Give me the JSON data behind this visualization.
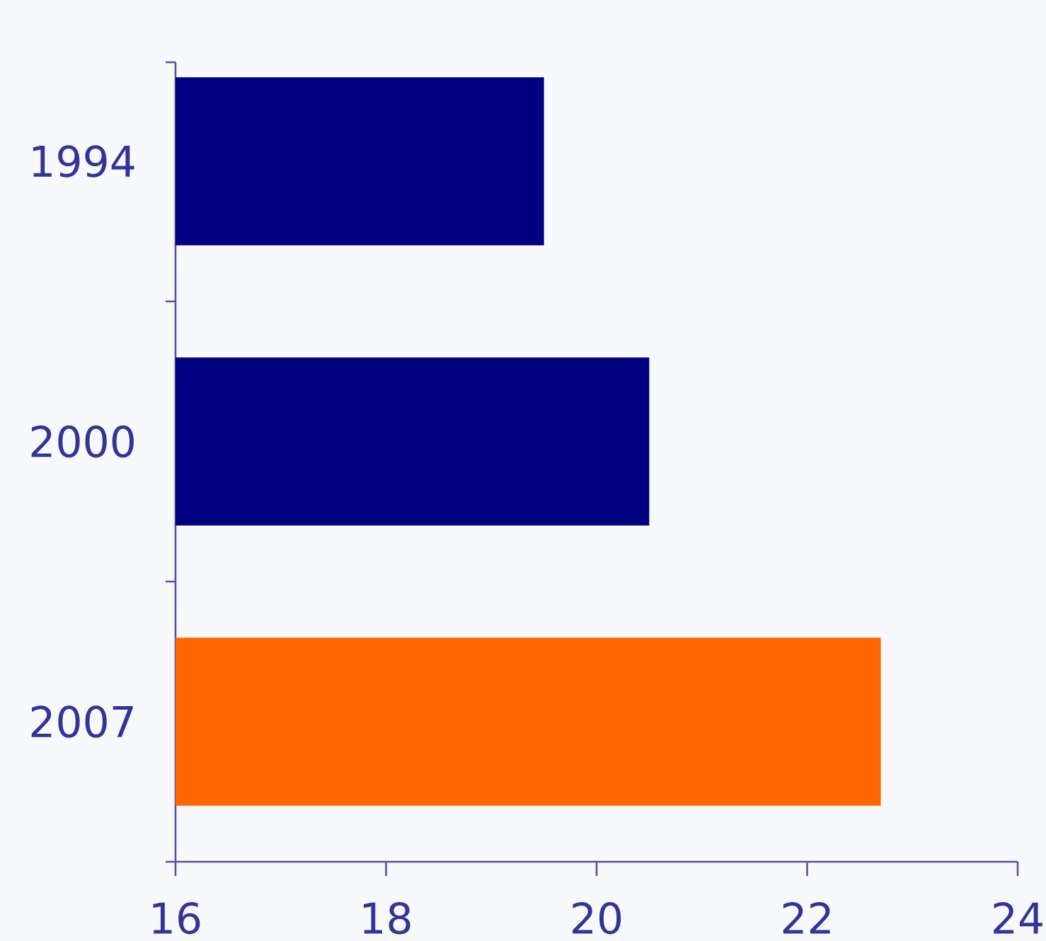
{
  "chart_data": {
    "type": "bar",
    "orientation": "horizontal",
    "categories": [
      "1994",
      "2000",
      "2007"
    ],
    "values": [
      19.5,
      20.5,
      22.7
    ],
    "colors": [
      "#000080",
      "#000080",
      "#ff6600"
    ],
    "xlim": [
      16,
      24
    ],
    "xticks": [
      16,
      18,
      20,
      22,
      24
    ]
  }
}
